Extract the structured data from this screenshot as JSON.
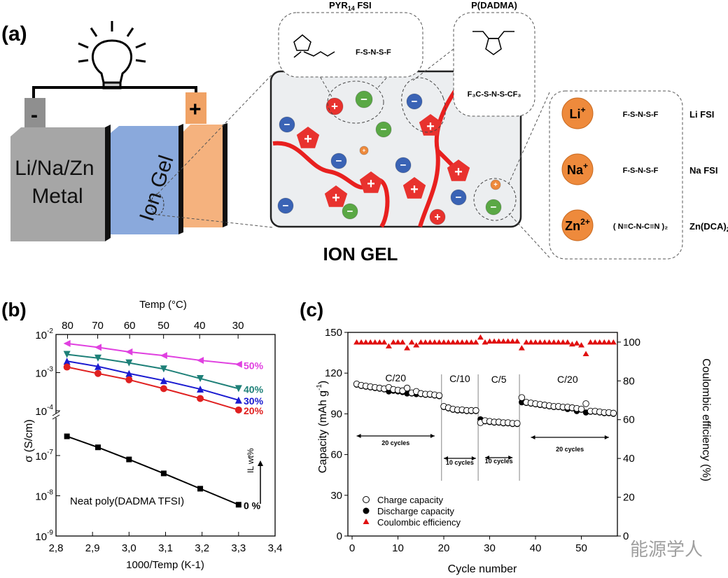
{
  "panel_a": {
    "label": "(a)",
    "anode": "Li/Na/Zn\nMetal",
    "anode_line1": "Li/Na/Zn",
    "anode_line2": "Metal",
    "electrolyte": "Ion Gel",
    "minus": "-",
    "plus": "+",
    "ion_gel_title": "ION GEL",
    "pyr_label": "PYR",
    "pyr_sub": "14",
    "pyr_suffix": " FSI",
    "pdadma_label": "P(DADMA)",
    "salts": [
      {
        "ion": "Li",
        "charge": "+",
        "name": "Li FSI"
      },
      {
        "ion": "Na",
        "charge": "+",
        "name": "Na FSI"
      },
      {
        "ion": "Zn",
        "charge": "2+",
        "name": "Zn(DCA)",
        "name_sub": "2"
      }
    ],
    "colors": {
      "anode": "#a6a6a6",
      "ion_gel": "#8aa9dc",
      "cathode": "#f5b27e",
      "polymer": "#e8201f",
      "cation": "#e8322e",
      "anion_blue": "#3a63b5",
      "anion_green": "#5aa845",
      "metal_ion": "#ee8a3c"
    }
  },
  "panel_b": {
    "label": "(b)"
  },
  "panel_c": {
    "label": "(c)"
  },
  "watermark": "能源学人",
  "chart_data": [
    {
      "type": "line",
      "panel": "b",
      "xlabel": "1000/Temp (K-1)",
      "ylabel": "σ (S/cm)",
      "top_axis_label": "Temp (°C)",
      "top_ticks": [
        80,
        70,
        60,
        50,
        40,
        30
      ],
      "xlim": [
        2.8,
        3.4
      ],
      "xticks": [
        "2,8",
        "2,9",
        "3,0",
        "3,1",
        "3,2",
        "3,3",
        "3,4"
      ],
      "yscale": "log (broken axis between 1e-4 and 1e-7)",
      "yticks": [
        "10-2",
        "10-3",
        "10-4",
        "10-7",
        "10-8",
        "10-9"
      ],
      "x": [
        2.83,
        2.915,
        3.0,
        3.095,
        3.195,
        3.3
      ],
      "series": [
        {
          "name": "50%",
          "color": "#e040e0",
          "marker": "triangle-left",
          "values": [
            0.0058,
            0.0046,
            0.0035,
            0.0028,
            0.0021,
            0.00165
          ]
        },
        {
          "name": "40%",
          "color": "#1e8078",
          "marker": "triangle-down",
          "values": [
            0.003,
            0.0024,
            0.0018,
            0.00125,
            0.0007,
            0.00038
          ]
        },
        {
          "name": "30%",
          "color": "#1a1ad0",
          "marker": "triangle-up",
          "values": [
            0.002,
            0.00145,
            0.00095,
            0.00062,
            0.00037,
            0.00019
          ]
        },
        {
          "name": "20%",
          "color": "#e02020",
          "marker": "circle",
          "values": [
            0.0014,
            0.00095,
            0.00065,
            0.00038,
            0.00021,
            0.000105
          ]
        },
        {
          "name": "0 %",
          "color": "#000000",
          "marker": "square",
          "values": [
            3e-07,
            1.6e-07,
            8e-08,
            3.6e-08,
            1.5e-08,
            6e-09
          ]
        }
      ],
      "annotations": [
        "Neat poly(DADMA TFSI)",
        "IL wt%"
      ]
    },
    {
      "type": "scatter",
      "panel": "c",
      "xlabel": "Cycle number",
      "ylabel": "Capacity (mAh g-1)",
      "y2label": "Coulombic efficiency (%)",
      "xlim": [
        -1,
        58
      ],
      "xticks": [
        0,
        10,
        20,
        30,
        40,
        50
      ],
      "ylim": [
        0,
        150
      ],
      "yticks": [
        0,
        30,
        60,
        90,
        120,
        150
      ],
      "y2lim": [
        0,
        105
      ],
      "y2ticks": [
        0,
        20,
        40,
        60,
        80,
        100
      ],
      "legend": [
        "Charge capacity",
        "Discharge capacity",
        "Coulombic efficiency"
      ],
      "legend_position": "bottom-left",
      "rate_labels": [
        "C/20",
        "C/10",
        "C/5",
        "C/20"
      ],
      "cycle_labels": [
        "20 cycles",
        "10 cycles",
        "10 cycles",
        "20 cycles"
      ],
      "charge": [
        112,
        111,
        110.5,
        110,
        109.5,
        109,
        108.5,
        109.5,
        108,
        107.5,
        107,
        109,
        105.5,
        106.5,
        105,
        104.5,
        104.5,
        104,
        103.5,
        95.5,
        94.5,
        93.5,
        93,
        93,
        92.5,
        92.5,
        92.5,
        83.5,
        85,
        84.5,
        84,
        84,
        83.5,
        83.5,
        83,
        83,
        102,
        98.5,
        98,
        97.5,
        97,
        96.5,
        96,
        95.5,
        95.5,
        95,
        95,
        94.5,
        94,
        93.5,
        97.5,
        92,
        92,
        91.5,
        91,
        91,
        90.5
      ],
      "discharge": [
        111.5,
        110.5,
        110,
        109.5,
        109,
        108.5,
        108,
        106.5,
        107,
        106.5,
        106,
        105,
        105,
        104.5,
        104.5,
        104,
        104,
        103.5,
        103,
        95,
        94,
        93,
        92.5,
        92.5,
        92,
        92,
        92,
        86,
        84.5,
        84,
        83.5,
        83.5,
        83,
        83,
        82.5,
        82.5,
        98.5,
        98,
        97.5,
        97,
        96.5,
        96,
        95.5,
        95,
        95,
        94.5,
        93.5,
        94,
        92,
        93,
        91,
        91.5,
        91.5,
        91,
        90.5,
        90.5,
        90
      ],
      "coulombic_efficiency": [
        100,
        100,
        100,
        100,
        100,
        100,
        100,
        98,
        100,
        100,
        100,
        97,
        100,
        98.5,
        100,
        100,
        100,
        100,
        100,
        100,
        100,
        100,
        100,
        100,
        100,
        100,
        100,
        102.5,
        100,
        100.5,
        100.5,
        100.5,
        100.5,
        100.5,
        100.5,
        100.5,
        97,
        100,
        100,
        100,
        100,
        100,
        100,
        100,
        100,
        100,
        100,
        99,
        99.5,
        98.5,
        94,
        100,
        100,
        100,
        100,
        100,
        100
      ],
      "colors": {
        "charge": "#ffffff",
        "discharge": "#000000",
        "ce": "#e01010"
      }
    }
  ]
}
